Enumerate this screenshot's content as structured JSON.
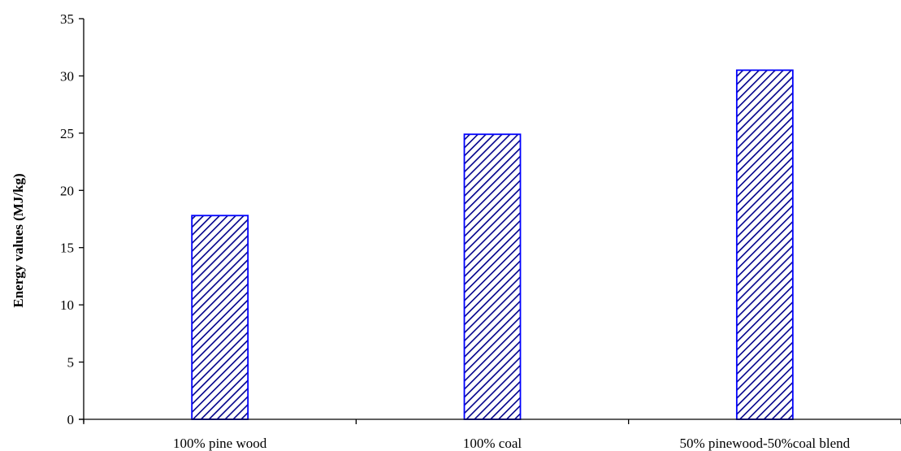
{
  "chart_data": {
    "type": "bar",
    "title": "",
    "xlabel": "",
    "ylabel": "Energy values (MJ/kg)",
    "categories": [
      "100% pine wood",
      "100% coal",
      "50% pinewood-50%coal blend"
    ],
    "values": [
      17.8,
      24.9,
      30.5
    ],
    "ylim": [
      0,
      35
    ],
    "yticks": [
      0,
      5,
      10,
      15,
      20,
      25,
      30,
      35
    ],
    "grid": false,
    "legend": "none",
    "colors": {
      "bar_stroke": "#0000ff",
      "bar_hatch": "#00008b",
      "axis": "#000000"
    }
  }
}
